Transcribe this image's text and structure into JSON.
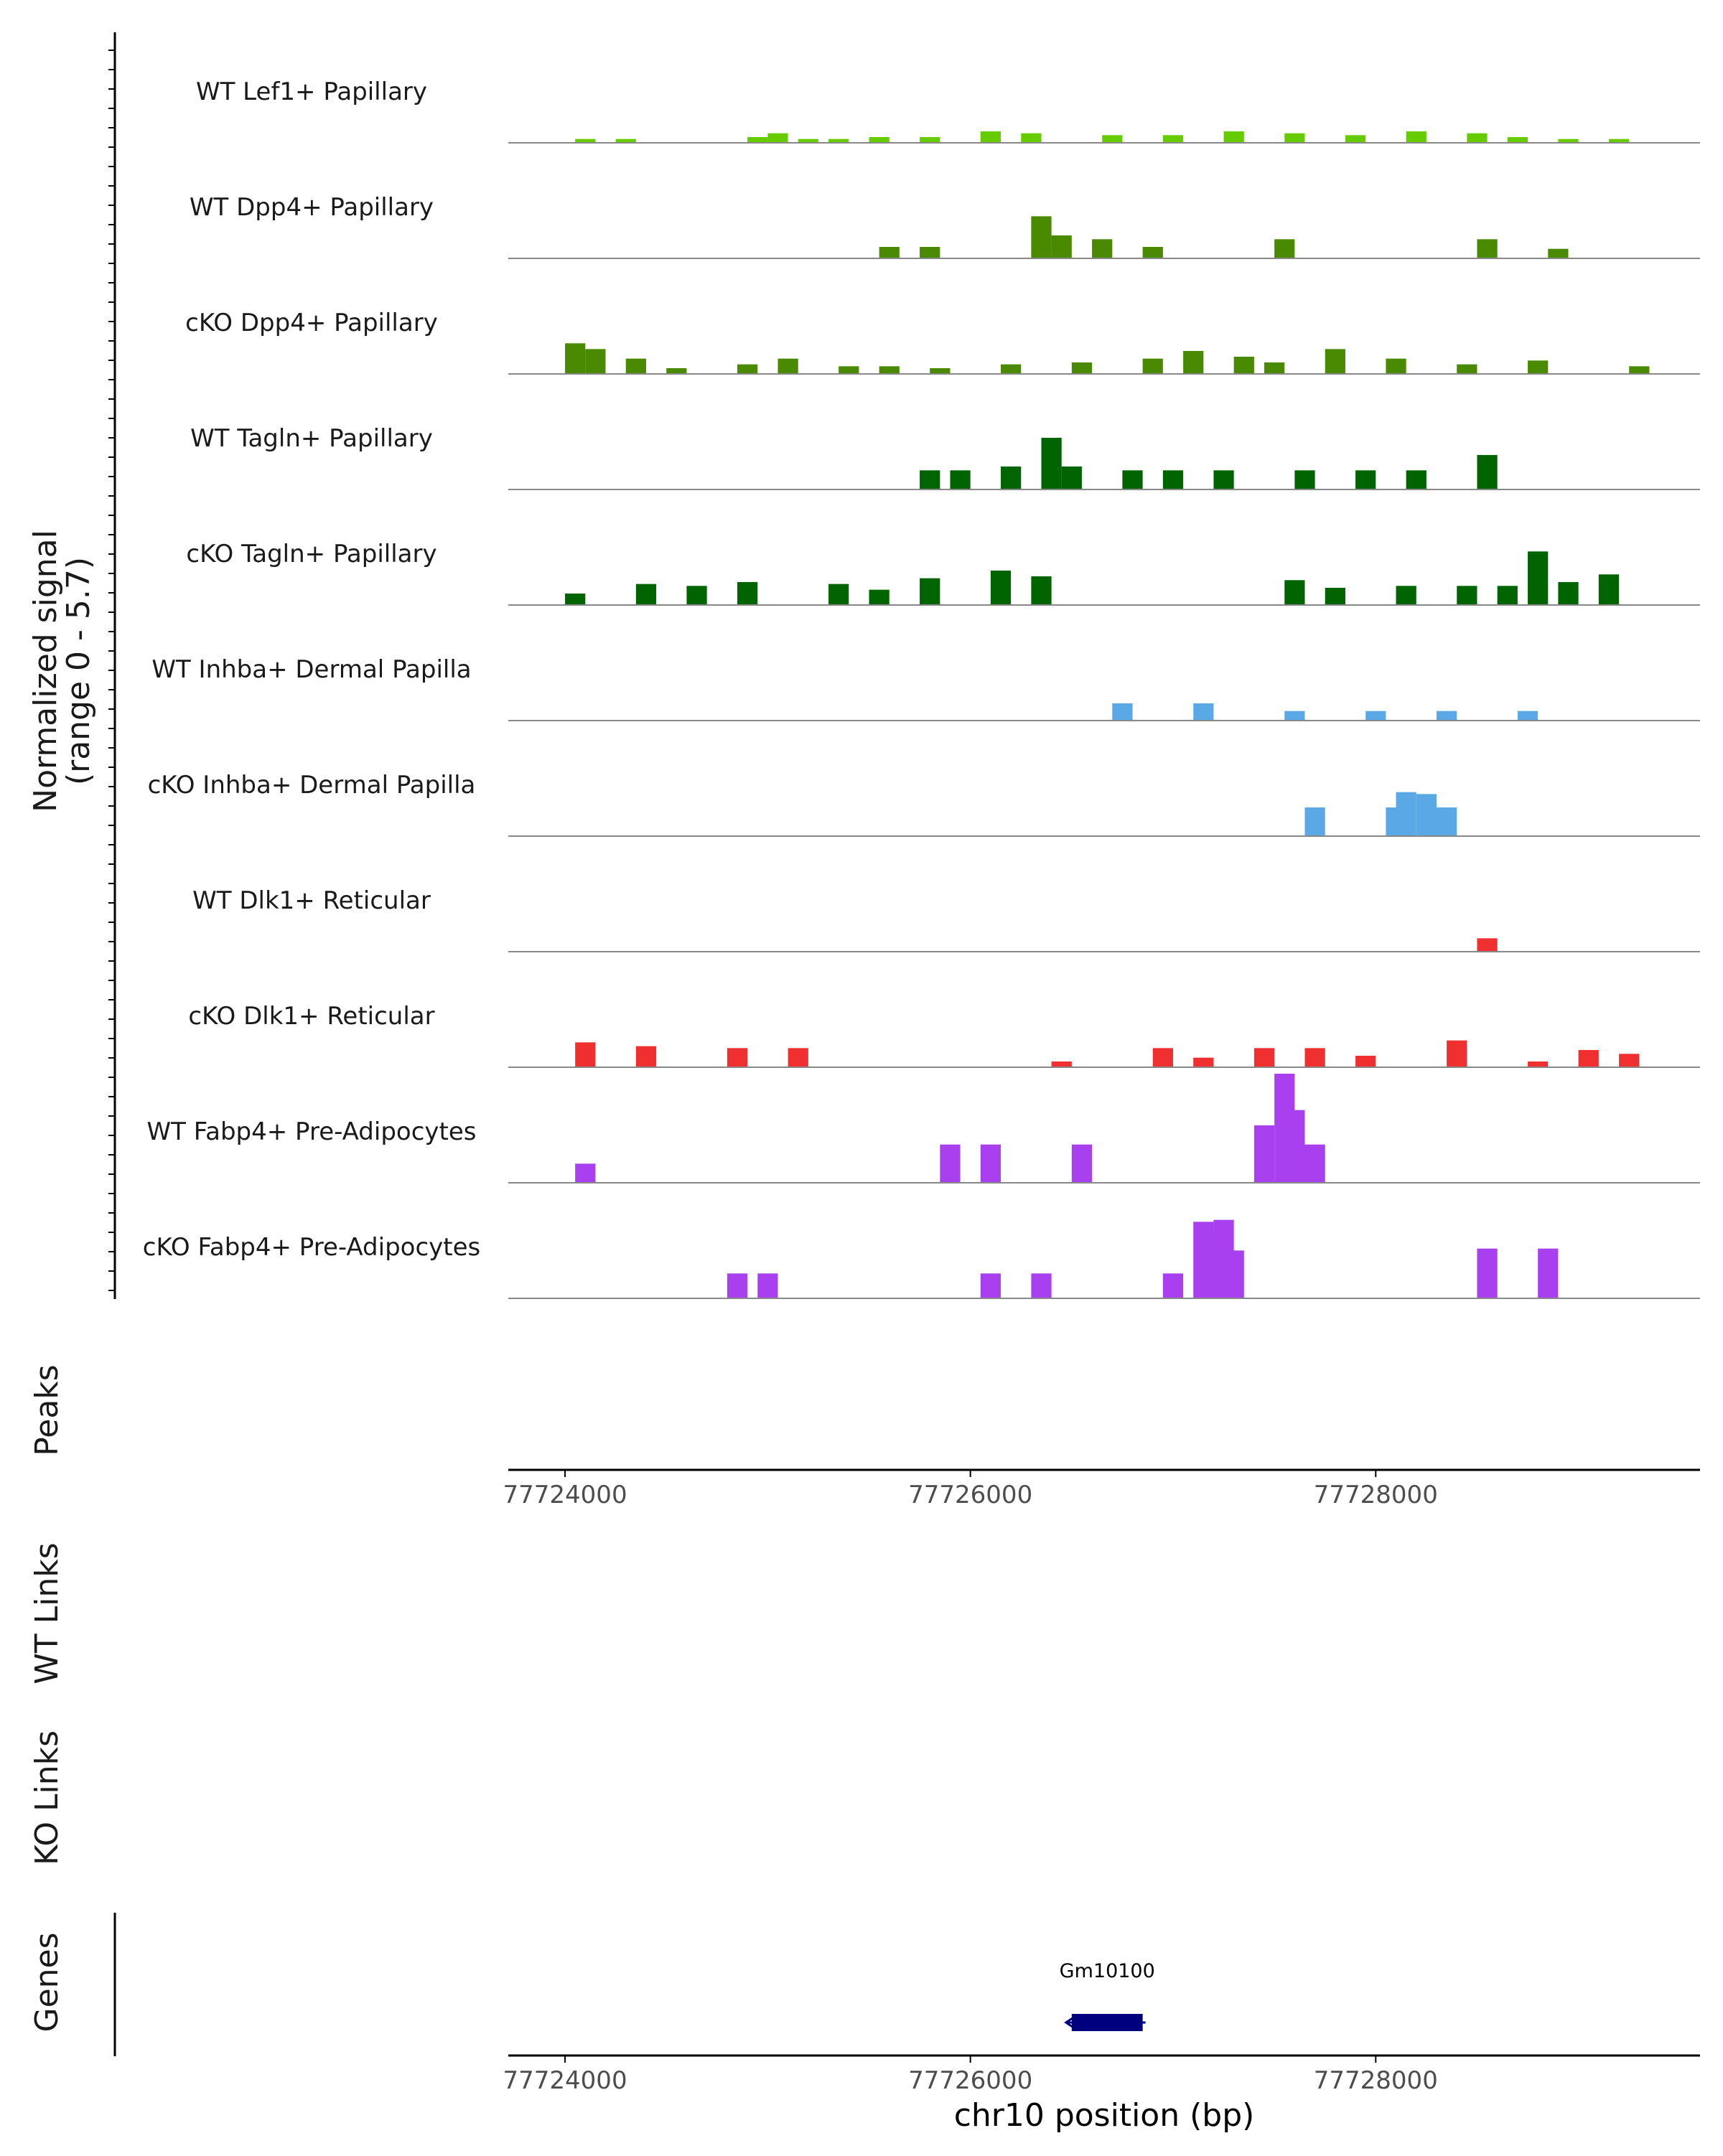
{
  "chart_data": {
    "type": "area",
    "ylabel_lines": [
      "Normalized signal",
      "(range 0 - 5.7)"
    ],
    "ylim": [
      0,
      5.7
    ],
    "xlabel": "chr10 position (bp)",
    "xlim": [
      77723720,
      77729600
    ],
    "x_ticks": [
      77724000,
      77726000,
      77728000
    ],
    "x_tick_labels": [
      "77724000",
      "77726000",
      "77728000"
    ],
    "panel_labels": {
      "peaks": "Peaks",
      "wt_links": "WT Links",
      "ko_links": "KO Links",
      "genes": "Genes"
    },
    "colors": {
      "lef1": "#66cc00",
      "dpp4": "#4a8a00",
      "tagln": "#006400",
      "inhba": "#5aa9e6",
      "dlk1": "#f03030",
      "fabp4": "#a940f0",
      "gene": "#00007f",
      "baseline": "#888888",
      "axis": "#000000"
    },
    "series": [
      {
        "name": "WT Lef1+ Papillary",
        "color_key": "lef1",
        "values": [
          [
            77724100,
            0.2
          ],
          [
            77724300,
            0.2
          ],
          [
            77724950,
            0.3
          ],
          [
            77725050,
            0.5
          ],
          [
            77725200,
            0.2
          ],
          [
            77725350,
            0.2
          ],
          [
            77725550,
            0.3
          ],
          [
            77725800,
            0.3
          ],
          [
            77726100,
            0.6
          ],
          [
            77726300,
            0.5
          ],
          [
            77726700,
            0.4
          ],
          [
            77727000,
            0.4
          ],
          [
            77727300,
            0.6
          ],
          [
            77727600,
            0.5
          ],
          [
            77727900,
            0.4
          ],
          [
            77728200,
            0.6
          ],
          [
            77728500,
            0.5
          ],
          [
            77728700,
            0.3
          ],
          [
            77728950,
            0.2
          ],
          [
            77729200,
            0.2
          ]
        ]
      },
      {
        "name": "WT Dpp4+ Papillary",
        "color_key": "dpp4",
        "values": [
          [
            77725600,
            0.6
          ],
          [
            77725800,
            0.6
          ],
          [
            77726350,
            2.2
          ],
          [
            77726450,
            1.2
          ],
          [
            77726650,
            1.0
          ],
          [
            77726900,
            0.6
          ],
          [
            77727550,
            1.0
          ],
          [
            77728550,
            1.0
          ],
          [
            77728900,
            0.5
          ]
        ]
      },
      {
        "name": "cKO Dpp4+ Papillary",
        "color_key": "dpp4",
        "values": [
          [
            77724050,
            1.6
          ],
          [
            77724150,
            1.3
          ],
          [
            77724350,
            0.8
          ],
          [
            77724550,
            0.3
          ],
          [
            77724900,
            0.5
          ],
          [
            77725100,
            0.8
          ],
          [
            77725400,
            0.4
          ],
          [
            77725600,
            0.4
          ],
          [
            77725850,
            0.3
          ],
          [
            77726200,
            0.5
          ],
          [
            77726550,
            0.6
          ],
          [
            77726900,
            0.8
          ],
          [
            77727100,
            1.2
          ],
          [
            77727350,
            0.9
          ],
          [
            77727500,
            0.6
          ],
          [
            77727800,
            1.3
          ],
          [
            77728100,
            0.8
          ],
          [
            77728450,
            0.5
          ],
          [
            77728800,
            0.7
          ],
          [
            77729300,
            0.4
          ]
        ]
      },
      {
        "name": "WT Tagln+ Papillary",
        "color_key": "tagln",
        "values": [
          [
            77725800,
            1.0
          ],
          [
            77725950,
            1.0
          ],
          [
            77726200,
            1.2
          ],
          [
            77726400,
            2.7
          ],
          [
            77726500,
            1.2
          ],
          [
            77726800,
            1.0
          ],
          [
            77727000,
            1.0
          ],
          [
            77727250,
            1.0
          ],
          [
            77727650,
            1.0
          ],
          [
            77727950,
            1.0
          ],
          [
            77728200,
            1.0
          ],
          [
            77728550,
            1.8
          ]
        ]
      },
      {
        "name": "cKO Tagln+ Papillary",
        "color_key": "tagln",
        "values": [
          [
            77724050,
            0.6
          ],
          [
            77724400,
            1.1
          ],
          [
            77724650,
            1.0
          ],
          [
            77724900,
            1.2
          ],
          [
            77725350,
            1.1
          ],
          [
            77725550,
            0.8
          ],
          [
            77725800,
            1.4
          ],
          [
            77726150,
            1.8
          ],
          [
            77726350,
            1.5
          ],
          [
            77727600,
            1.3
          ],
          [
            77727800,
            0.9
          ],
          [
            77728150,
            1.0
          ],
          [
            77728450,
            1.0
          ],
          [
            77728650,
            1.0
          ],
          [
            77728800,
            2.8
          ],
          [
            77728950,
            1.2
          ],
          [
            77729150,
            1.6
          ]
        ]
      },
      {
        "name": "WT Inhba+ Dermal Papilla",
        "color_key": "inhba",
        "values": [
          [
            77726750,
            0.9
          ],
          [
            77727150,
            0.9
          ],
          [
            77727600,
            0.5
          ],
          [
            77728000,
            0.5
          ],
          [
            77728350,
            0.5
          ],
          [
            77728750,
            0.5
          ]
        ]
      },
      {
        "name": "cKO Inhba+ Dermal Papilla",
        "color_key": "inhba",
        "values": [
          [
            77727700,
            1.5
          ],
          [
            77728100,
            1.5
          ],
          [
            77728150,
            2.3
          ],
          [
            77728250,
            2.2
          ],
          [
            77728350,
            1.5
          ]
        ]
      },
      {
        "name": "WT Dlk1+ Reticular",
        "color_key": "dlk1",
        "values": [
          [
            77728550,
            0.7
          ]
        ]
      },
      {
        "name": "cKO Dlk1+ Reticular",
        "color_key": "dlk1",
        "values": [
          [
            77724100,
            1.3
          ],
          [
            77724400,
            1.1
          ],
          [
            77724850,
            1.0
          ],
          [
            77725150,
            1.0
          ],
          [
            77726450,
            0.3
          ],
          [
            77726950,
            1.0
          ],
          [
            77727150,
            0.5
          ],
          [
            77727450,
            1.0
          ],
          [
            77727700,
            1.0
          ],
          [
            77727950,
            0.6
          ],
          [
            77728400,
            1.4
          ],
          [
            77728800,
            0.3
          ],
          [
            77729050,
            0.9
          ],
          [
            77729250,
            0.7
          ]
        ]
      },
      {
        "name": "WT Fabp4+ Pre-Adipocytes",
        "color_key": "fabp4",
        "values": [
          [
            77724100,
            1.0
          ],
          [
            77725900,
            2.0
          ],
          [
            77726100,
            2.0
          ],
          [
            77726550,
            2.0
          ],
          [
            77727450,
            3.0
          ],
          [
            77727550,
            5.7
          ],
          [
            77727600,
            3.8
          ],
          [
            77727700,
            2.0
          ]
        ]
      },
      {
        "name": "cKO Fabp4+ Pre-Adipocytes",
        "color_key": "fabp4",
        "values": [
          [
            77724850,
            1.3
          ],
          [
            77725000,
            1.3
          ],
          [
            77726100,
            1.3
          ],
          [
            77726350,
            1.3
          ],
          [
            77727000,
            1.3
          ],
          [
            77727150,
            4.0
          ],
          [
            77727200,
            3.5
          ],
          [
            77727250,
            4.1
          ],
          [
            77727300,
            2.5
          ],
          [
            77728550,
            2.6
          ],
          [
            77728850,
            2.6
          ]
        ]
      }
    ],
    "genes": [
      {
        "name": "Gm10100",
        "start": 77726500,
        "end": 77726850,
        "strand": "-"
      }
    ]
  }
}
